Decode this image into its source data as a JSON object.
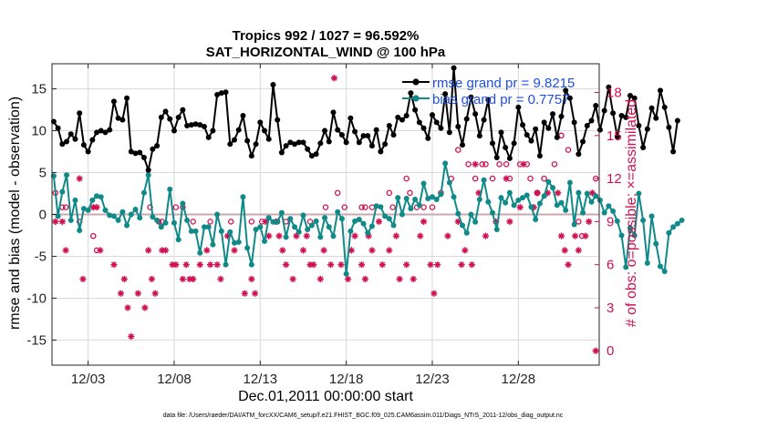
{
  "colors": {
    "rmse": "#000000",
    "bias": "#108a88",
    "obs": "#d0104f",
    "grid": "#d8d8d8",
    "zero": "#c9a8b0",
    "legend_text": "#1f4fe0"
  },
  "chart_data": {
    "type": "line",
    "title": [
      "Tropics 992 / 1027 = 96.592%",
      "SAT_HORIZONTAL_WIND @ 100 hPa"
    ],
    "xlabel": "Dec.01,2011 00:00:00 start",
    "ylabel_left": "rmse and bias (model - observation)",
    "ylabel_right": "# of obs: o=possible; ×=assimilated",
    "footer": "data file: /Users/raeder/DAI/ATM_forcXX/CAM6_setup/f.e21.FHIST_BGC.f09_025.CAM6assim.011/Diags_NTrS_2011-12/obs_diag_output.nc",
    "xlim": [
      0.4,
      32.2
    ],
    "ylim_left": [
      -18,
      18
    ],
    "ylim_right": [
      -1,
      20
    ],
    "x_ticks": [
      2.5,
      7.5,
      12.5,
      17.5,
      22.5,
      27.5
    ],
    "x_tick_labels": [
      "12/03",
      "12/08",
      "12/13",
      "12/18",
      "12/23",
      "12/28"
    ],
    "y_ticks_left": [
      -15,
      -10,
      -5,
      0,
      5,
      10,
      15
    ],
    "y_ticks_right": [
      0,
      3,
      6,
      9,
      12,
      15,
      18
    ],
    "legend": [
      "rmse grand pr = 9.8215",
      "bias grand pr = 0.7757"
    ],
    "series": [
      {
        "name": "rmse",
        "x0": 0.5,
        "dx": 0.25,
        "values": [
          11.1,
          10.3,
          8.4,
          8.7,
          9.6,
          9.0,
          12.1,
          8.3,
          7.5,
          8.9,
          9.8,
          10.0,
          9.8,
          10.1,
          13.5,
          11.5,
          11.3,
          13.9,
          7.5,
          7.3,
          7.4,
          6.8,
          5.3,
          7.8,
          8.2,
          11.6,
          12.3,
          11.4,
          10.0,
          11.6,
          12.5,
          10.6,
          10.7,
          10.8,
          10.7,
          10.5,
          9.2,
          10.0,
          14.3,
          14.5,
          14.6,
          8.4,
          8.9,
          10.1,
          11.8,
          8.8,
          7.0,
          8.4,
          11.0,
          10.0,
          9.0,
          15.5,
          11.3,
          7.4,
          8.2,
          8.6,
          8.4,
          8.6,
          8.6,
          7.8,
          7.0,
          7.2,
          8.5,
          10.0,
          8.7,
          12.2,
          10.1,
          9.5,
          8.6,
          11.5,
          9.9,
          8.6,
          9.4,
          9.4,
          8.2,
          10.1,
          7.5,
          8.4,
          10.6,
          9.5,
          11.6,
          11.3,
          11.8,
          14.5,
          12.5,
          11.0,
          10.3,
          9.1,
          11.9,
          11.0,
          10.3,
          14.4,
          9.8,
          17.5,
          10.5,
          8.3,
          11.4,
          14.0,
          12.0,
          9.4,
          11.3,
          13.7,
          8.5,
          6.8,
          9.8,
          8.0,
          6.7,
          8.5,
          12.8,
          10.7,
          9.5,
          8.8,
          10.2,
          7.0,
          11.0,
          10.3,
          12.0,
          9.2,
          11.7,
          14.8,
          13.9,
          11.0,
          7.2,
          8.7,
          10.6,
          11.2,
          13.0,
          10.1,
          12.4,
          15.2,
          12.1,
          9.3,
          11.8,
          11.6,
          14.2,
          13.9,
          10.6,
          8.0,
          10.2,
          12.7,
          11.5,
          14.8,
          12.8,
          10.4,
          7.5,
          11.2
        ]
      },
      {
        "name": "bias",
        "x0": 0.5,
        "dx": 0.25,
        "values": [
          4.6,
          -0.2,
          2.7,
          4.7,
          -0.7,
          1.7,
          -1.9,
          0.7,
          0.5,
          1.7,
          2.2,
          2.1,
          0.5,
          -0.1,
          -0.2,
          -0.7,
          0.3,
          -1.3,
          0.0,
          0.6,
          -0.4,
          2.6,
          4.7,
          -0.3,
          -0.7,
          -1.5,
          -1.0,
          3.0,
          -1.0,
          -3.0,
          1.3,
          -0.7,
          -2.0,
          -2.0,
          -4.6,
          -1.5,
          -1.5,
          -3.6,
          0.0,
          -2.0,
          -6.0,
          -2.1,
          -3.4,
          -3.3,
          2.1,
          -4.0,
          -6.0,
          -1.8,
          -1.5,
          -3.2,
          -0.4,
          -0.9,
          -0.9,
          0.2,
          -2.7,
          -0.5,
          -1.5,
          -2.1,
          -0.1,
          -1.8,
          -1.3,
          -0.8,
          -2.7,
          -0.4,
          -1.5,
          -2.6,
          0.3,
          -0.5,
          -7.1,
          -2.0,
          -0.8,
          -0.6,
          -1.1,
          -2.2,
          -1.4,
          1.0,
          0.9,
          -0.2,
          -0.5,
          -1.3,
          2.0,
          0.0,
          1.9,
          0.7,
          1.8,
          1.1,
          3.7,
          1.9,
          2.1,
          1.8,
          2.4,
          6.1,
          3.8,
          2.1,
          0.1,
          -1.3,
          -2.2,
          0.0,
          -0.9,
          1.8,
          4.1,
          1.5,
          0.2,
          -1.8,
          2.0,
          1.4,
          2.6,
          1.1,
          1.7,
          2.0,
          2.3,
          0.9,
          -0.6,
          1.3,
          2.2,
          3.9,
          3.2,
          1.1,
          1.4,
          0.5,
          3.8,
          -1.2,
          2.6,
          0.2,
          2.5,
          1.5,
          2.2,
          1.7,
          0.2,
          1.0,
          0.4,
          -0.8,
          -2.5,
          -6.3,
          -1.6,
          -2.5,
          2.5,
          -0.7,
          -5.8,
          -0.2,
          -3.5,
          -6.2,
          -6.8,
          -2.2,
          -1.5,
          -1.1,
          -0.7
        ]
      },
      {
        "name": "possible",
        "marker": "circle",
        "points": [
          [
            0.6,
            11
          ],
          [
            1.0,
            10
          ],
          [
            1.2,
            10
          ],
          [
            2.0,
            9
          ],
          [
            2.8,
            8
          ],
          [
            3.0,
            7
          ],
          [
            6.1,
            10
          ],
          [
            6.6,
            9
          ],
          [
            6.8,
            9
          ],
          [
            7.6,
            10
          ],
          [
            8.0,
            10
          ],
          [
            8.6,
            9
          ],
          [
            9.6,
            9
          ],
          [
            10.8,
            9
          ],
          [
            12.0,
            9
          ],
          [
            12.6,
            9
          ],
          [
            13.5,
            9
          ],
          [
            14.0,
            9
          ],
          [
            15.4,
            9
          ],
          [
            16.3,
            10
          ],
          [
            17.0,
            11
          ],
          [
            17.4,
            10
          ],
          [
            18.4,
            10
          ],
          [
            18.6,
            10
          ],
          [
            19.0,
            10
          ],
          [
            20.0,
            11
          ],
          [
            20.2,
            10
          ],
          [
            21.0,
            12
          ],
          [
            21.2,
            11
          ],
          [
            21.6,
            10
          ],
          [
            22.0,
            10
          ],
          [
            22.5,
            10
          ],
          [
            23.0,
            11
          ],
          [
            23.6,
            12
          ],
          [
            24.0,
            14
          ],
          [
            24.6,
            13
          ],
          [
            25.0,
            12
          ],
          [
            25.4,
            13
          ],
          [
            25.6,
            13
          ],
          [
            26.0,
            12
          ],
          [
            26.4,
            13
          ],
          [
            26.8,
            13
          ],
          [
            27.0,
            12
          ],
          [
            27.6,
            13
          ],
          [
            28.0,
            13
          ],
          [
            28.2,
            12
          ],
          [
            28.6,
            11
          ],
          [
            29.0,
            12
          ],
          [
            29.6,
            13
          ],
          [
            30.0,
            15
          ],
          [
            30.4,
            14
          ],
          [
            31.0,
            9
          ],
          [
            31.2,
            8
          ],
          [
            32.0,
            12
          ]
        ]
      },
      {
        "name": "assimilated",
        "marker": "asterisk",
        "points": [
          [
            0.6,
            9
          ],
          [
            1.0,
            9
          ],
          [
            1.2,
            7
          ],
          [
            2.0,
            12
          ],
          [
            2.2,
            5
          ],
          [
            2.8,
            10
          ],
          [
            3.0,
            10
          ],
          [
            3.2,
            7
          ],
          [
            4.0,
            6
          ],
          [
            4.4,
            4
          ],
          [
            4.6,
            5
          ],
          [
            4.8,
            3
          ],
          [
            5.0,
            1
          ],
          [
            5.4,
            4
          ],
          [
            5.8,
            3
          ],
          [
            6.0,
            7
          ],
          [
            6.2,
            5
          ],
          [
            6.4,
            4
          ],
          [
            6.8,
            7
          ],
          [
            7.0,
            7
          ],
          [
            7.4,
            6
          ],
          [
            7.6,
            6
          ],
          [
            8.0,
            5
          ],
          [
            8.2,
            6
          ],
          [
            8.4,
            5
          ],
          [
            8.6,
            5
          ],
          [
            9.0,
            6
          ],
          [
            9.4,
            7
          ],
          [
            9.6,
            6
          ],
          [
            10.0,
            6
          ],
          [
            10.2,
            5
          ],
          [
            10.6,
            8
          ],
          [
            11.0,
            7
          ],
          [
            11.6,
            4
          ],
          [
            12.0,
            5
          ],
          [
            12.2,
            4
          ],
          [
            12.8,
            9
          ],
          [
            13.0,
            8
          ],
          [
            13.4,
            9
          ],
          [
            13.6,
            8
          ],
          [
            13.8,
            7
          ],
          [
            14.0,
            6
          ],
          [
            14.4,
            5
          ],
          [
            14.6,
            8
          ],
          [
            15.0,
            7
          ],
          [
            15.2,
            8
          ],
          [
            15.4,
            6
          ],
          [
            15.6,
            6
          ],
          [
            16.0,
            5
          ],
          [
            16.2,
            7
          ],
          [
            16.6,
            6
          ],
          [
            16.8,
            19
          ],
          [
            17.2,
            6
          ],
          [
            17.6,
            5
          ],
          [
            17.8,
            7
          ],
          [
            18.0,
            8
          ],
          [
            18.4,
            6
          ],
          [
            18.6,
            5
          ],
          [
            18.8,
            8
          ],
          [
            19.0,
            7
          ],
          [
            19.4,
            9
          ],
          [
            19.6,
            6
          ],
          [
            20.0,
            7
          ],
          [
            20.4,
            8
          ],
          [
            20.6,
            5
          ],
          [
            21.0,
            6
          ],
          [
            21.4,
            5
          ],
          [
            21.8,
            8
          ],
          [
            22.0,
            9
          ],
          [
            22.4,
            6
          ],
          [
            22.6,
            4
          ],
          [
            22.8,
            6
          ],
          [
            23.4,
            8
          ],
          [
            24.0,
            9
          ],
          [
            24.2,
            6
          ],
          [
            24.4,
            7
          ],
          [
            24.8,
            6
          ],
          [
            25.0,
            13
          ],
          [
            25.2,
            11
          ],
          [
            25.6,
            8
          ],
          [
            26.2,
            9
          ],
          [
            26.8,
            12
          ],
          [
            27.0,
            9
          ],
          [
            27.6,
            10
          ],
          [
            27.8,
            13
          ],
          [
            28.4,
            10
          ],
          [
            28.6,
            11
          ],
          [
            29.2,
            11
          ],
          [
            29.8,
            11
          ],
          [
            30.0,
            8
          ],
          [
            30.2,
            7
          ],
          [
            30.4,
            6
          ],
          [
            30.8,
            8
          ],
          [
            31.0,
            7
          ],
          [
            31.4,
            8
          ],
          [
            31.6,
            9
          ],
          [
            31.8,
            11
          ],
          [
            32.0,
            0
          ]
        ]
      }
    ]
  }
}
